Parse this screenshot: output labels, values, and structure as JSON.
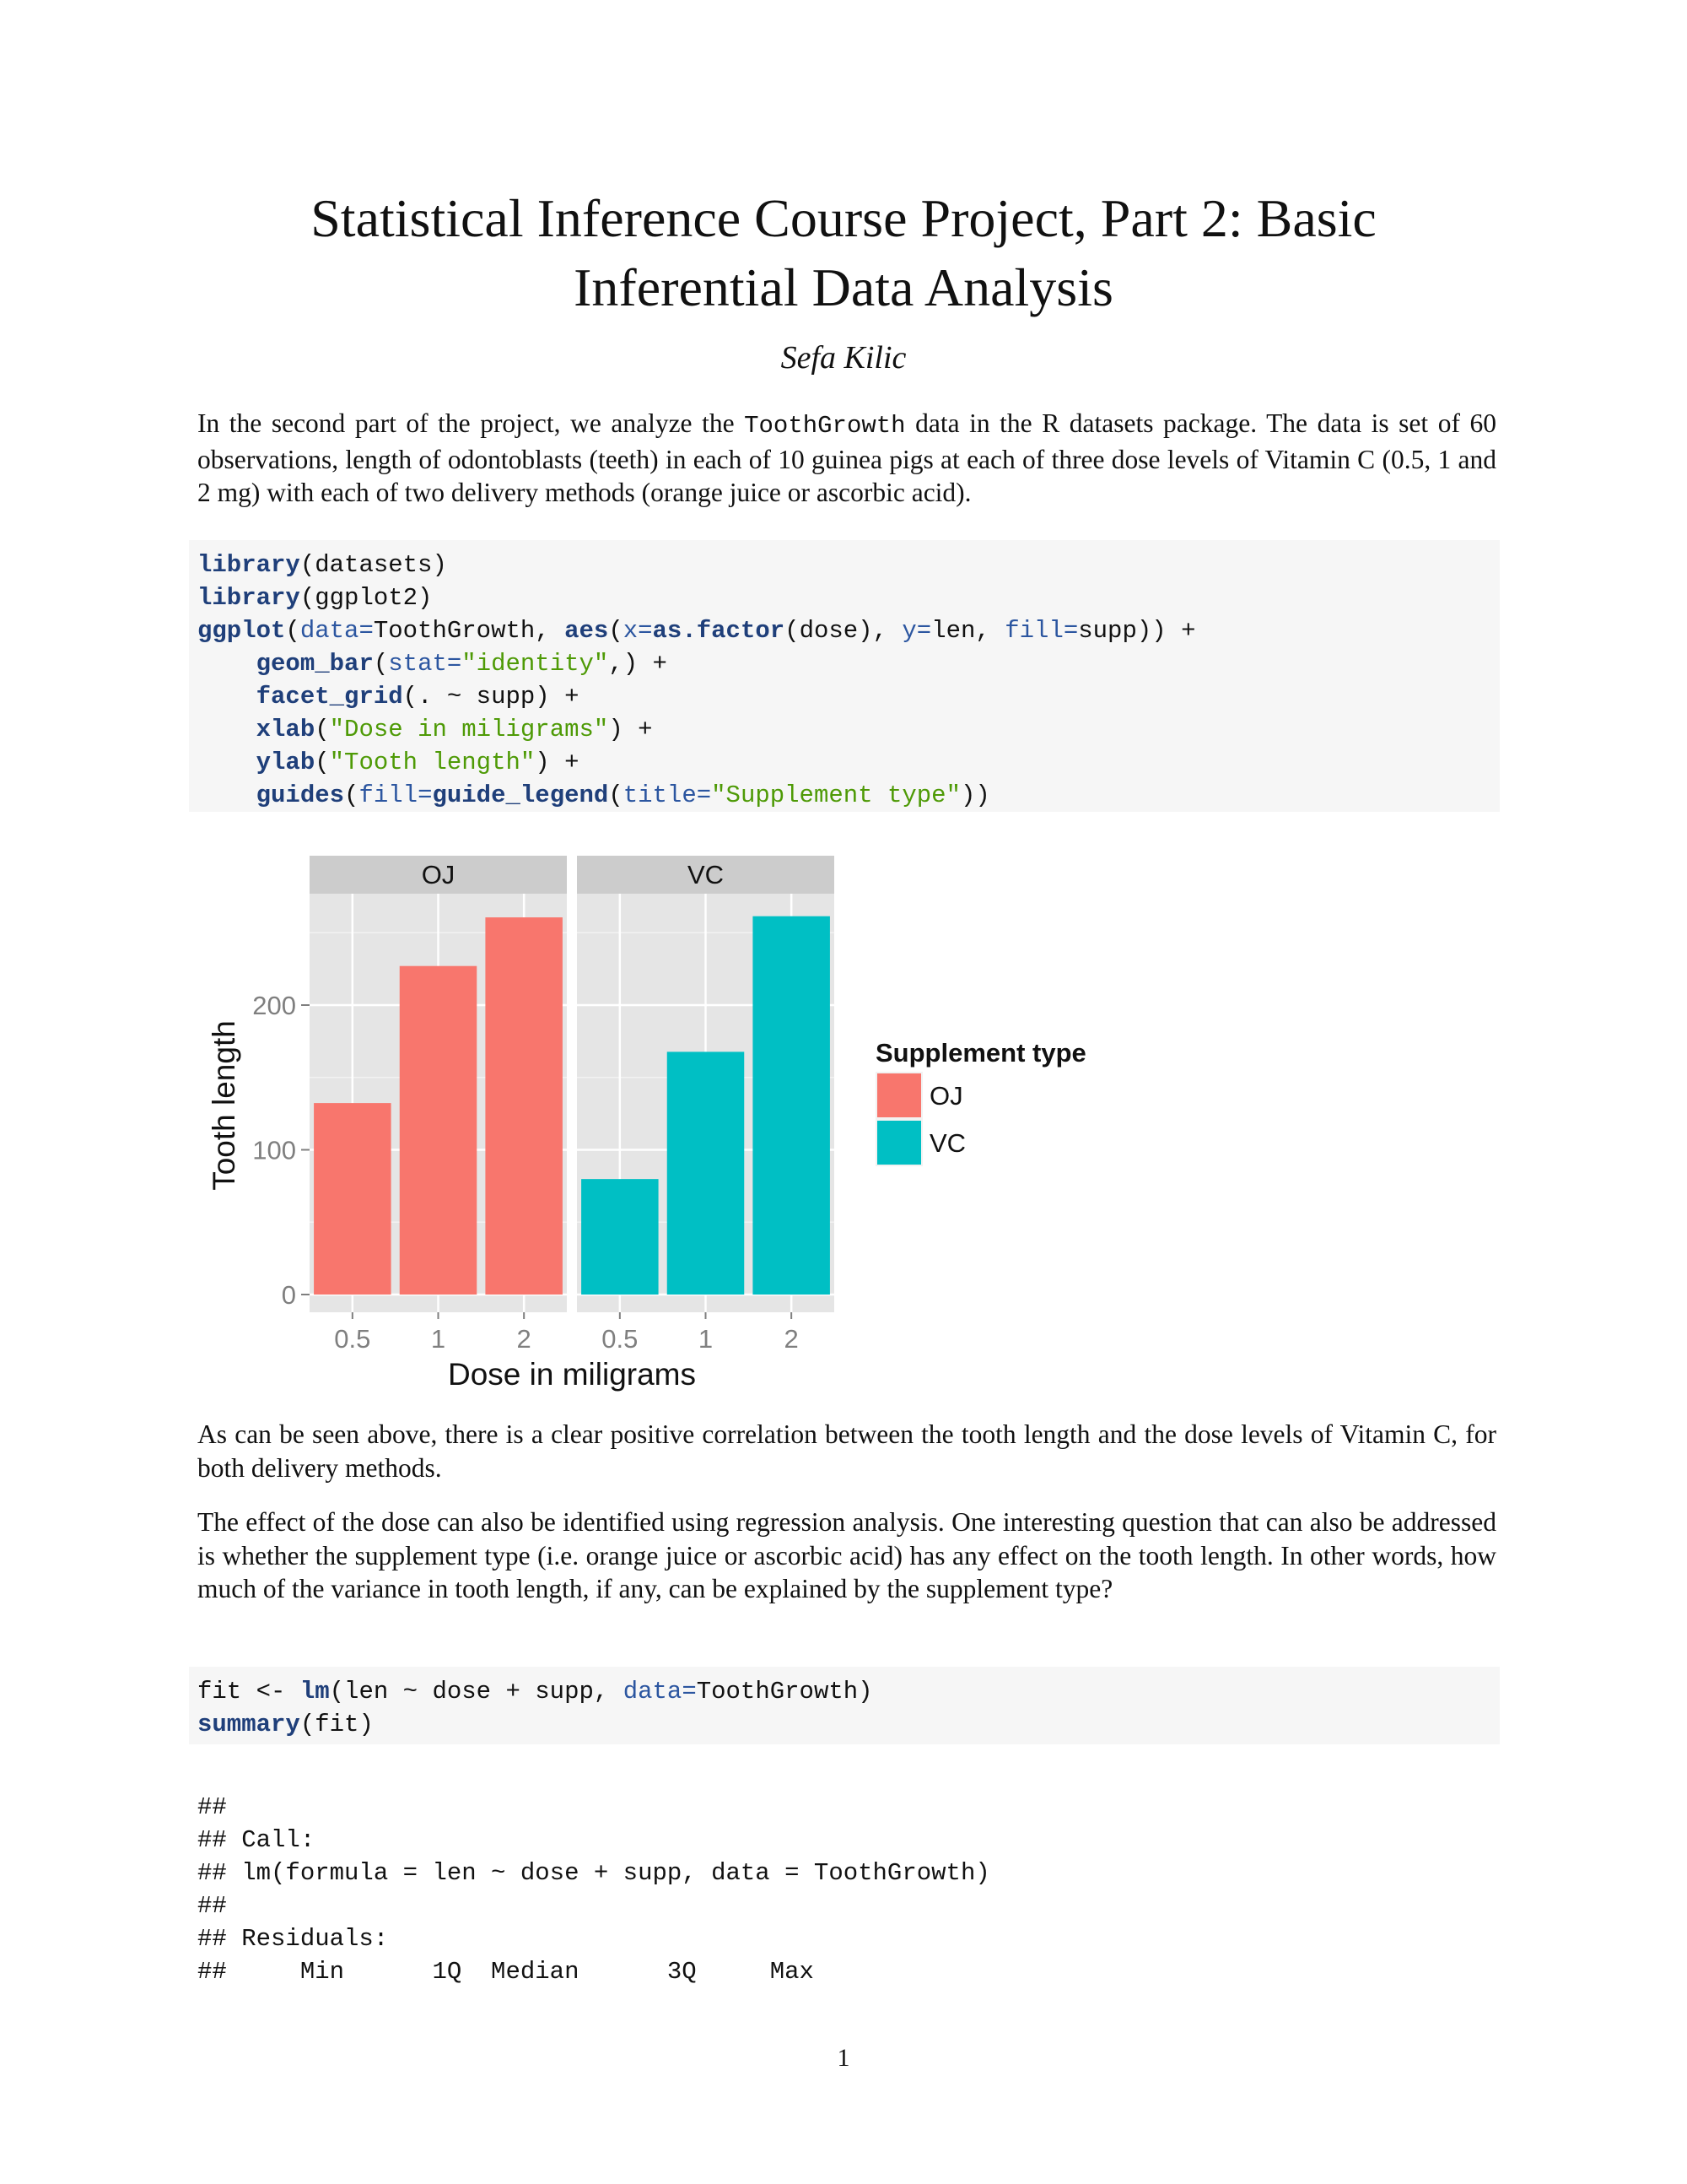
{
  "title_line1": "Statistical Inference Course Project, Part 2: Basic",
  "title_line2": "Inferential Data Analysis",
  "author": "Sefa Kilic",
  "intro": {
    "part1": "In the second part of the project, we analyze the ",
    "code": "ToothGrowth",
    "part2": " data in the R datasets package. The data is set of 60 observations, length of odontoblasts (teeth) in each of 10 guinea pigs at each of three dose levels of Vitamin C (0.5, 1 and 2 mg) with each of two delivery methods (orange juice or ascorbic acid)."
  },
  "code1": [
    [
      [
        "fn",
        "library"
      ],
      [
        "plain",
        "(datasets)"
      ]
    ],
    [
      [
        "fn",
        "library"
      ],
      [
        "plain",
        "(ggplot2)"
      ]
    ],
    [
      [
        "fn",
        "ggplot"
      ],
      [
        "plain",
        "("
      ],
      [
        "arg",
        "data="
      ],
      [
        "plain",
        "ToothGrowth, "
      ],
      [
        "fn",
        "aes"
      ],
      [
        "plain",
        "("
      ],
      [
        "arg",
        "x="
      ],
      [
        "fn",
        "as.factor"
      ],
      [
        "plain",
        "(dose), "
      ],
      [
        "arg",
        "y="
      ],
      [
        "plain",
        "len, "
      ],
      [
        "arg",
        "fill="
      ],
      [
        "plain",
        "supp)) +"
      ]
    ],
    [
      [
        "plain",
        "    "
      ],
      [
        "fn",
        "geom_bar"
      ],
      [
        "plain",
        "("
      ],
      [
        "arg",
        "stat="
      ],
      [
        "str",
        "\"identity\""
      ],
      [
        "plain",
        ",) +"
      ]
    ],
    [
      [
        "plain",
        "    "
      ],
      [
        "fn",
        "facet_grid"
      ],
      [
        "plain",
        "(. ~ supp) +"
      ]
    ],
    [
      [
        "plain",
        "    "
      ],
      [
        "fn",
        "xlab"
      ],
      [
        "plain",
        "("
      ],
      [
        "str",
        "\"Dose in miligrams\""
      ],
      [
        "plain",
        ") +"
      ]
    ],
    [
      [
        "plain",
        "    "
      ],
      [
        "fn",
        "ylab"
      ],
      [
        "plain",
        "("
      ],
      [
        "str",
        "\"Tooth length\""
      ],
      [
        "plain",
        ") +"
      ]
    ],
    [
      [
        "plain",
        "    "
      ],
      [
        "fn",
        "guides"
      ],
      [
        "plain",
        "("
      ],
      [
        "arg",
        "fill="
      ],
      [
        "fn",
        "guide_legend"
      ],
      [
        "plain",
        "("
      ],
      [
        "arg",
        "title="
      ],
      [
        "str",
        "\"Supplement type\""
      ],
      [
        "plain",
        "))"
      ]
    ]
  ],
  "para2": "As can be seen above, there is a clear positive correlation between the tooth length and the dose levels of Vitamin C, for both delivery methods.",
  "para3": "The effect of the dose can also be identified using regression analysis. One interesting question that can also be addressed is whether the supplement type (i.e. orange juice or ascorbic acid) has any effect on the tooth length. In other words, how much of the variance in tooth length, if any, can be explained by the supplement type?",
  "code2": [
    [
      [
        "plain",
        "fit <- "
      ],
      [
        "fn",
        "lm"
      ],
      [
        "plain",
        "(len ~ dose + supp, "
      ],
      [
        "arg",
        "data="
      ],
      [
        "plain",
        "ToothGrowth)"
      ]
    ],
    [
      [
        "fn",
        "summary"
      ],
      [
        "plain",
        "(fit)"
      ]
    ]
  ],
  "output": [
    "##",
    "## Call:",
    "## lm(formula = len ~ dose + supp, data = ToothGrowth)",
    "##",
    "## Residuals:",
    "##     Min      1Q  Median      3Q     Max"
  ],
  "page_number": "1",
  "colors": {
    "OJ": "#f8766d",
    "VC": "#00bfc4",
    "panel_bg": "#e5e5e5",
    "strip_bg": "#cccccc",
    "grid": "#ffffff"
  },
  "chart_data": {
    "type": "bar",
    "facets": [
      "OJ",
      "VC"
    ],
    "categories": [
      "0.5",
      "1",
      "2"
    ],
    "series": [
      {
        "name": "OJ",
        "values": [
          132.3,
          227.0,
          260.6
        ]
      },
      {
        "name": "VC",
        "values": [
          79.8,
          167.7,
          261.4
        ]
      }
    ],
    "xlabel": "Dose in miligrams",
    "ylabel": "Tooth length",
    "ylim": [
      -10,
      285
    ],
    "yticks": [
      0,
      100,
      200
    ],
    "legend_title": "Supplement type",
    "legend_entries": [
      "OJ",
      "VC"
    ],
    "legend_position": "right",
    "grid": true
  }
}
